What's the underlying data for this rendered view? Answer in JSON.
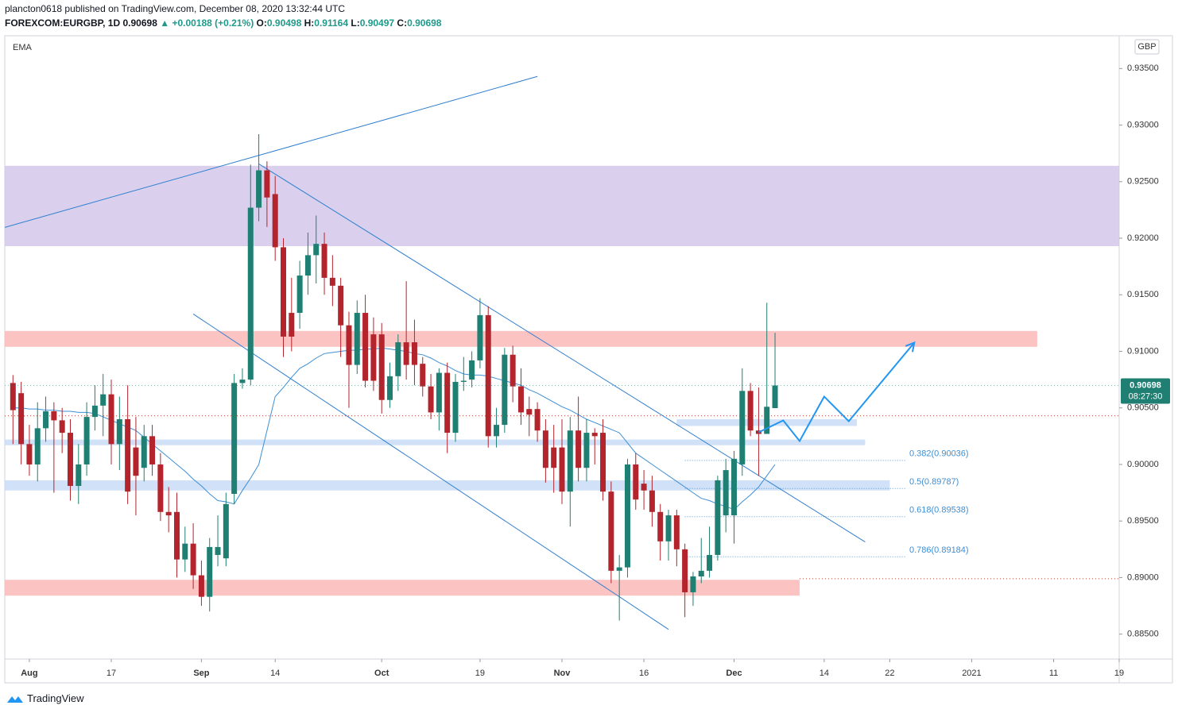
{
  "header": {
    "publisher": "plancton0618 published on TradingView.com, December 08, 2020 13:32:44 UTC",
    "symbol": "FOREXCOM:EURGBP, 1D",
    "price": "0.90698",
    "arrow": "▲",
    "change": "+0.00188 (+0.21%)",
    "o_label": "O:",
    "o": "0.90498",
    "h_label": "H:",
    "h": "0.91164",
    "l_label": "L:",
    "l": "0.90497",
    "c_label": "C:",
    "c": "0.90698"
  },
  "chart_data": {
    "type": "candlestick",
    "indicator": "EMA",
    "currency": "GBP",
    "countdown": "08:27:30",
    "up_color": "#1f7f73",
    "down_color": "#b3242c",
    "ema_color": "#3d8fd6",
    "line_color": "#2f7fd0",
    "projection_color": "#2196f3",
    "grid": false,
    "xlim": [
      "2020-07-29",
      "2021-01-19"
    ],
    "ylim": [
      0.8828,
      0.9379
    ],
    "yticks": [
      {
        "value": 0.885,
        "label": "0.88500"
      },
      {
        "value": 0.89,
        "label": "0.89000"
      },
      {
        "value": 0.895,
        "label": "0.89500"
      },
      {
        "value": 0.9,
        "label": "0.90000"
      },
      {
        "value": 0.905,
        "label": "0.90500"
      },
      {
        "value": 0.91,
        "label": "0.91000"
      },
      {
        "value": 0.915,
        "label": "0.91500"
      },
      {
        "value": 0.92,
        "label": "0.92000"
      },
      {
        "value": 0.925,
        "label": "0.92500"
      },
      {
        "value": 0.93,
        "label": "0.93000"
      },
      {
        "value": 0.935,
        "label": "0.93500"
      }
    ],
    "xticks": [
      {
        "value": "2020-08-03",
        "label": "Aug"
      },
      {
        "value": "2020-08-17",
        "label": "17"
      },
      {
        "value": "2020-09-01",
        "label": "Sep"
      },
      {
        "value": "2020-09-14",
        "label": "14"
      },
      {
        "value": "2020-10-01",
        "label": "Oct"
      },
      {
        "value": "2020-10-19",
        "label": "19"
      },
      {
        "value": "2020-11-02",
        "label": "Nov"
      },
      {
        "value": "2020-11-16",
        "label": "16"
      },
      {
        "value": "2020-12-01",
        "label": "Dec"
      },
      {
        "value": "2020-12-14",
        "label": "14"
      },
      {
        "value": "2020-12-22",
        "label": "22"
      },
      {
        "value": "2021-01-01",
        "label": "2021"
      },
      {
        "value": "2021-01-11",
        "label": "11"
      },
      {
        "value": "2021-01-19",
        "label": "19"
      }
    ],
    "x": [
      "2020-07-30",
      "2020-07-31",
      "2020-08-03",
      "2020-08-04",
      "2020-08-05",
      "2020-08-06",
      "2020-08-07",
      "2020-08-10",
      "2020-08-11",
      "2020-08-12",
      "2020-08-13",
      "2020-08-14",
      "2020-08-17",
      "2020-08-18",
      "2020-08-19",
      "2020-08-20",
      "2020-08-21",
      "2020-08-24",
      "2020-08-25",
      "2020-08-26",
      "2020-08-27",
      "2020-08-28",
      "2020-08-31",
      "2020-09-01",
      "2020-09-02",
      "2020-09-03",
      "2020-09-04",
      "2020-09-07",
      "2020-09-08",
      "2020-09-09",
      "2020-09-10",
      "2020-09-11",
      "2020-09-14",
      "2020-09-15",
      "2020-09-16",
      "2020-09-17",
      "2020-09-18",
      "2020-09-21",
      "2020-09-22",
      "2020-09-23",
      "2020-09-24",
      "2020-09-25",
      "2020-09-28",
      "2020-09-29",
      "2020-09-30",
      "2020-10-01",
      "2020-10-02",
      "2020-10-05",
      "2020-10-06",
      "2020-10-07",
      "2020-10-08",
      "2020-10-09",
      "2020-10-12",
      "2020-10-13",
      "2020-10-14",
      "2020-10-15",
      "2020-10-16",
      "2020-10-19",
      "2020-10-20",
      "2020-10-21",
      "2020-10-22",
      "2020-10-23",
      "2020-10-26",
      "2020-10-27",
      "2020-10-28",
      "2020-10-29",
      "2020-10-30",
      "2020-11-02",
      "2020-11-03",
      "2020-11-04",
      "2020-11-05",
      "2020-11-06",
      "2020-11-09",
      "2020-11-10",
      "2020-11-11",
      "2020-11-12",
      "2020-11-13",
      "2020-11-16",
      "2020-11-17",
      "2020-11-18",
      "2020-11-19",
      "2020-11-20",
      "2020-11-23",
      "2020-11-24",
      "2020-11-25",
      "2020-11-26",
      "2020-11-27",
      "2020-11-30",
      "2020-12-01",
      "2020-12-02",
      "2020-12-03",
      "2020-12-04",
      "2020-12-07",
      "2020-12-08"
    ],
    "open": [
      0.9072,
      0.9063,
      0.9018,
      0.9,
      0.9032,
      0.9047,
      0.9039,
      0.9028,
      0.8981,
      0.9,
      0.9042,
      0.9052,
      0.9062,
      0.9018,
      0.904,
      0.9015,
      0.8997,
      0.9025,
      0.9,
      0.8958,
      0.8958,
      0.8916,
      0.893,
      0.8902,
      0.8883,
      0.892,
      0.8917,
      0.8974,
      0.9072,
      0.9075,
      0.9227,
      0.926,
      0.9239,
      0.9192,
      0.9134,
      0.9134,
      0.9167,
      0.9185,
      0.9195,
      0.9165,
      0.9158,
      0.9123,
      0.9088,
      0.9134,
      0.9115,
      0.9115,
      0.9057,
      0.9078,
      0.9108,
      0.9108,
      0.9089,
      0.9069,
      0.9046,
      0.9081,
      0.9028,
      0.9073,
      0.9075,
      0.9092,
      0.9132,
      0.9025,
      0.9035,
      0.9097,
      0.9069,
      0.9049,
      0.9049,
      0.903,
      0.9015,
      0.9015,
      0.8976,
      0.903,
      0.8997,
      0.9028,
      0.9028,
      0.8976,
      0.8906,
      0.8909,
      0.9,
      0.8983,
      0.8977,
      0.8958,
      0.8932,
      0.8955,
      0.8925,
      0.8887,
      0.8901,
      0.8906,
      0.892,
      0.8955,
      0.8955,
      0.9,
      0.9065,
      0.903,
      0.9027,
      0.90498
    ],
    "high": [
      0.9079,
      0.9073,
      0.9035,
      0.9055,
      0.906,
      0.9055,
      0.905,
      0.904,
      0.9018,
      0.9055,
      0.907,
      0.908,
      0.9075,
      0.906,
      0.907,
      0.9042,
      0.9035,
      0.9035,
      0.901,
      0.898,
      0.8975,
      0.8945,
      0.8948,
      0.8915,
      0.8935,
      0.8955,
      0.8975,
      0.908,
      0.9085,
      0.9265,
      0.9292,
      0.9268,
      0.9255,
      0.92,
      0.9165,
      0.918,
      0.9205,
      0.922,
      0.9205,
      0.9185,
      0.9165,
      0.9135,
      0.9145,
      0.915,
      0.913,
      0.9125,
      0.909,
      0.9115,
      0.9162,
      0.9128,
      0.9095,
      0.908,
      0.9085,
      0.909,
      0.908,
      0.9095,
      0.91,
      0.9147,
      0.914,
      0.905,
      0.9103,
      0.9105,
      0.9085,
      0.906,
      0.9055,
      0.904,
      0.9035,
      0.904,
      0.9042,
      0.906,
      0.904,
      0.9032,
      0.904,
      0.8985,
      0.892,
      0.9005,
      0.901,
      0.8995,
      0.899,
      0.8965,
      0.896,
      0.896,
      0.893,
      0.8905,
      0.8935,
      0.8945,
      0.899,
      0.9005,
      0.9012,
      0.9085,
      0.9072,
      0.9068,
      0.9143,
      0.91164
    ],
    "low": [
      0.9018,
      0.9,
      0.899,
      0.8985,
      0.902,
      0.8975,
      0.901,
      0.8968,
      0.8965,
      0.899,
      0.903,
      0.9025,
      0.9,
      0.8995,
      0.8965,
      0.8955,
      0.8985,
      0.899,
      0.895,
      0.894,
      0.89,
      0.8905,
      0.889,
      0.8875,
      0.887,
      0.891,
      0.891,
      0.8965,
      0.9067,
      0.907,
      0.9215,
      0.921,
      0.918,
      0.9095,
      0.91,
      0.912,
      0.915,
      0.916,
      0.915,
      0.914,
      0.9095,
      0.905,
      0.908,
      0.9068,
      0.9065,
      0.9045,
      0.905,
      0.9065,
      0.9075,
      0.907,
      0.906,
      0.904,
      0.903,
      0.901,
      0.902,
      0.9065,
      0.9068,
      0.9085,
      0.9015,
      0.9015,
      0.9028,
      0.9055,
      0.9035,
      0.9025,
      0.902,
      0.8984,
      0.8975,
      0.8965,
      0.8945,
      0.8985,
      0.8985,
      0.9,
      0.8968,
      0.8895,
      0.8862,
      0.89,
      0.896,
      0.896,
      0.8945,
      0.8915,
      0.8915,
      0.891,
      0.8865,
      0.8875,
      0.8895,
      0.89,
      0.8915,
      0.894,
      0.893,
      0.899,
      0.9025,
      0.899,
      0.9027,
      0.90497
    ],
    "close": [
      0.9048,
      0.9018,
      0.9,
      0.9032,
      0.9047,
      0.9039,
      0.9028,
      0.8981,
      0.9,
      0.9042,
      0.9052,
      0.9062,
      0.9018,
      0.904,
      0.8976,
      0.899,
      0.9025,
      0.9,
      0.8958,
      0.8955,
      0.8916,
      0.893,
      0.8902,
      0.8883,
      0.8927,
      0.8927,
      0.8965,
      0.9072,
      0.9075,
      0.9227,
      0.926,
      0.9236,
      0.9192,
      0.9113,
      0.9113,
      0.9167,
      0.9185,
      0.9195,
      0.9165,
      0.9158,
      0.9123,
      0.9088,
      0.9134,
      0.9074,
      0.9074,
      0.9057,
      0.9078,
      0.9108,
      0.9088,
      0.9088,
      0.9069,
      0.9046,
      0.9081,
      0.9028,
      0.9073,
      0.9074,
      0.9092,
      0.9132,
      0.9025,
      0.9035,
      0.9097,
      0.9069,
      0.9046,
      0.9044,
      0.903,
      0.8997,
      0.8997,
      0.8976,
      0.903,
      0.8997,
      0.9028,
      0.9025,
      0.8976,
      0.8906,
      0.8909,
      0.9,
      0.8969,
      0.8977,
      0.8958,
      0.8932,
      0.8955,
      0.8925,
      0.8887,
      0.8901,
      0.8906,
      0.892,
      0.8986,
      0.8995,
      0.9005,
      0.9065,
      0.903,
      0.9027,
      0.9051,
      0.90698
    ],
    "ema": [
      0.905,
      0.905,
      0.9049,
      0.9049,
      0.9048,
      0.9048,
      0.9047,
      0.9047,
      0.9046,
      0.9046,
      0.9045,
      0.9042,
      0.9039,
      0.9036,
      0.9033,
      0.903,
      0.9024,
      0.9018,
      0.9012,
      0.9006,
      0.9,
      0.8994,
      0.8987,
      0.8981,
      0.8974,
      0.8968,
      0.8967,
      0.8965,
      0.8977,
      0.8988,
      0.9,
      0.903,
      0.906,
      0.9068,
      0.9077,
      0.9085,
      0.9089,
      0.9094,
      0.9098,
      0.9099,
      0.91,
      0.9101,
      0.9101,
      0.9102,
      0.9102,
      0.9103,
      0.9102,
      0.9101,
      0.91,
      0.9098,
      0.9097,
      0.9094,
      0.909,
      0.9087,
      0.9083,
      0.908,
      0.9079,
      0.9079,
      0.9078,
      0.9076,
      0.9074,
      0.9072,
      0.907,
      0.9066,
      0.9063,
      0.9059,
      0.9055,
      0.9051,
      0.9048,
      0.9044,
      0.904,
      0.9037,
      0.9034,
      0.9031,
      0.9028,
      0.9019,
      0.901,
      0.9005,
      0.9,
      0.8995,
      0.899,
      0.8985,
      0.898,
      0.8975,
      0.897,
      0.8968,
      0.8965,
      0.8963,
      0.896,
      0.8967,
      0.8973,
      0.898,
      0.899,
      0.9
    ],
    "zones": [
      {
        "from": "2020-07-29",
        "to": "2021-01-19",
        "ylim": [
          0.9193,
          0.9264
        ],
        "color": "#d4c8ea"
      },
      {
        "from": "2020-07-29",
        "to": "2021-01-09",
        "ylim": [
          0.9104,
          0.9118
        ],
        "color": "#fbb8b8"
      },
      {
        "from": "2020-07-29",
        "to": "2020-12-11",
        "ylim": [
          0.8884,
          0.8898
        ],
        "color": "#fbb8b8"
      },
      {
        "from": "2020-11-20",
        "to": "2020-12-18",
        "ylim": [
          0.9034,
          0.904
        ],
        "color": "#c9dcf6"
      },
      {
        "from": "2020-07-29",
        "to": "2020-12-19",
        "ylim": [
          0.9017,
          0.9022
        ],
        "color": "#c9dcf6"
      },
      {
        "from": "2020-07-29",
        "to": "2020-12-22",
        "ylim": [
          0.8977,
          0.8986
        ],
        "color": "#c9dcf6"
      }
    ],
    "lines": [
      {
        "x": [
          "2020-07-29",
          "2020-10-28"
        ],
        "y": [
          0.92096,
          0.9343
        ]
      },
      {
        "x": [
          "2020-09-10",
          "2020-12-19"
        ],
        "y": [
          0.92657,
          0.89315
        ]
      },
      {
        "x": [
          "2020-08-31",
          "2020-11-19"
        ],
        "y": [
          0.9133,
          0.88542
        ]
      }
    ],
    "projection": {
      "x": [
        "2020-12-04",
        "2020-12-09",
        "2020-12-11",
        "2020-12-14",
        "2020-12-17",
        "2020-12-25"
      ],
      "y": [
        0.90284,
        0.90389,
        0.90207,
        0.906,
        0.90382,
        0.91077
      ]
    },
    "fib": [
      {
        "value": 0.90036,
        "label": "0.382(0.90036)",
        "from": "2020-11-23",
        "to": "2020-12-24"
      },
      {
        "value": 0.89787,
        "label": "0.5(0.89787)",
        "from": "2020-11-23",
        "to": "2020-12-24"
      },
      {
        "value": 0.89538,
        "label": "0.618(0.89538)",
        "from": "2020-11-23",
        "to": "2020-12-24"
      },
      {
        "value": 0.89184,
        "label": "0.786(0.89184)",
        "from": "2020-11-23",
        "to": "2020-12-24"
      }
    ],
    "hlines": [
      {
        "value": 0.9043,
        "from": "2020-07-29",
        "color": "#c0392b"
      },
      {
        "value": 0.8899,
        "from": "2020-12-11",
        "color": "#c0392b"
      }
    ]
  },
  "footer": {
    "brand": "TradingView"
  }
}
